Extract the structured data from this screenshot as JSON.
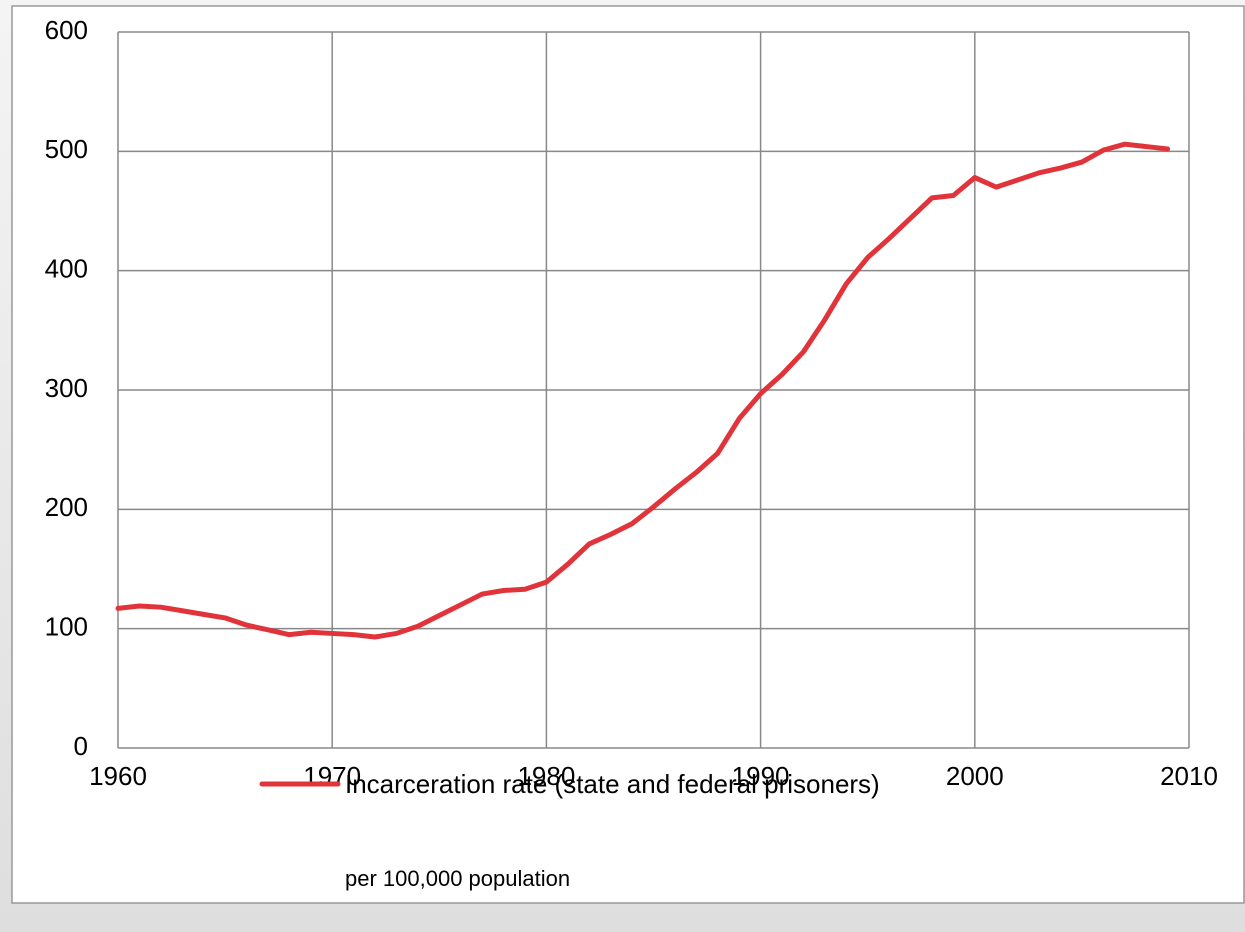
{
  "chart_data": {
    "type": "line",
    "x": [
      1960,
      1961,
      1962,
      1963,
      1964,
      1965,
      1966,
      1967,
      1968,
      1969,
      1970,
      1971,
      1972,
      1973,
      1974,
      1975,
      1976,
      1977,
      1978,
      1979,
      1980,
      1981,
      1982,
      1983,
      1984,
      1985,
      1986,
      1987,
      1988,
      1989,
      1990,
      1991,
      1992,
      1993,
      1994,
      1995,
      1996,
      1997,
      1998,
      1999,
      2000,
      2001,
      2002,
      2003,
      2004,
      2005,
      2006,
      2007,
      2008,
      2009
    ],
    "series": [
      {
        "name": "Incarceration rate (state and federal prisoners)",
        "color": "#e0343a",
        "values": [
          117,
          119,
          118,
          115,
          112,
          109,
          103,
          99,
          95,
          97,
          96,
          95,
          93,
          96,
          102,
          111,
          120,
          129,
          132,
          133,
          139,
          154,
          171,
          179,
          188,
          202,
          217,
          231,
          247,
          276,
          297,
          313,
          332,
          359,
          389,
          411,
          427,
          444,
          461,
          463,
          478,
          470,
          476,
          482,
          486,
          491,
          501,
          506,
          504,
          502
        ]
      }
    ],
    "xlim": [
      1960,
      2010
    ],
    "xticks": [
      1960,
      1970,
      1980,
      1990,
      2000,
      2010
    ],
    "ylim": [
      0,
      600
    ],
    "yticks": [
      0,
      100,
      200,
      300,
      400,
      500,
      600
    ],
    "grid": true,
    "legend": "bottom",
    "annotation": "per 100,000 population"
  }
}
